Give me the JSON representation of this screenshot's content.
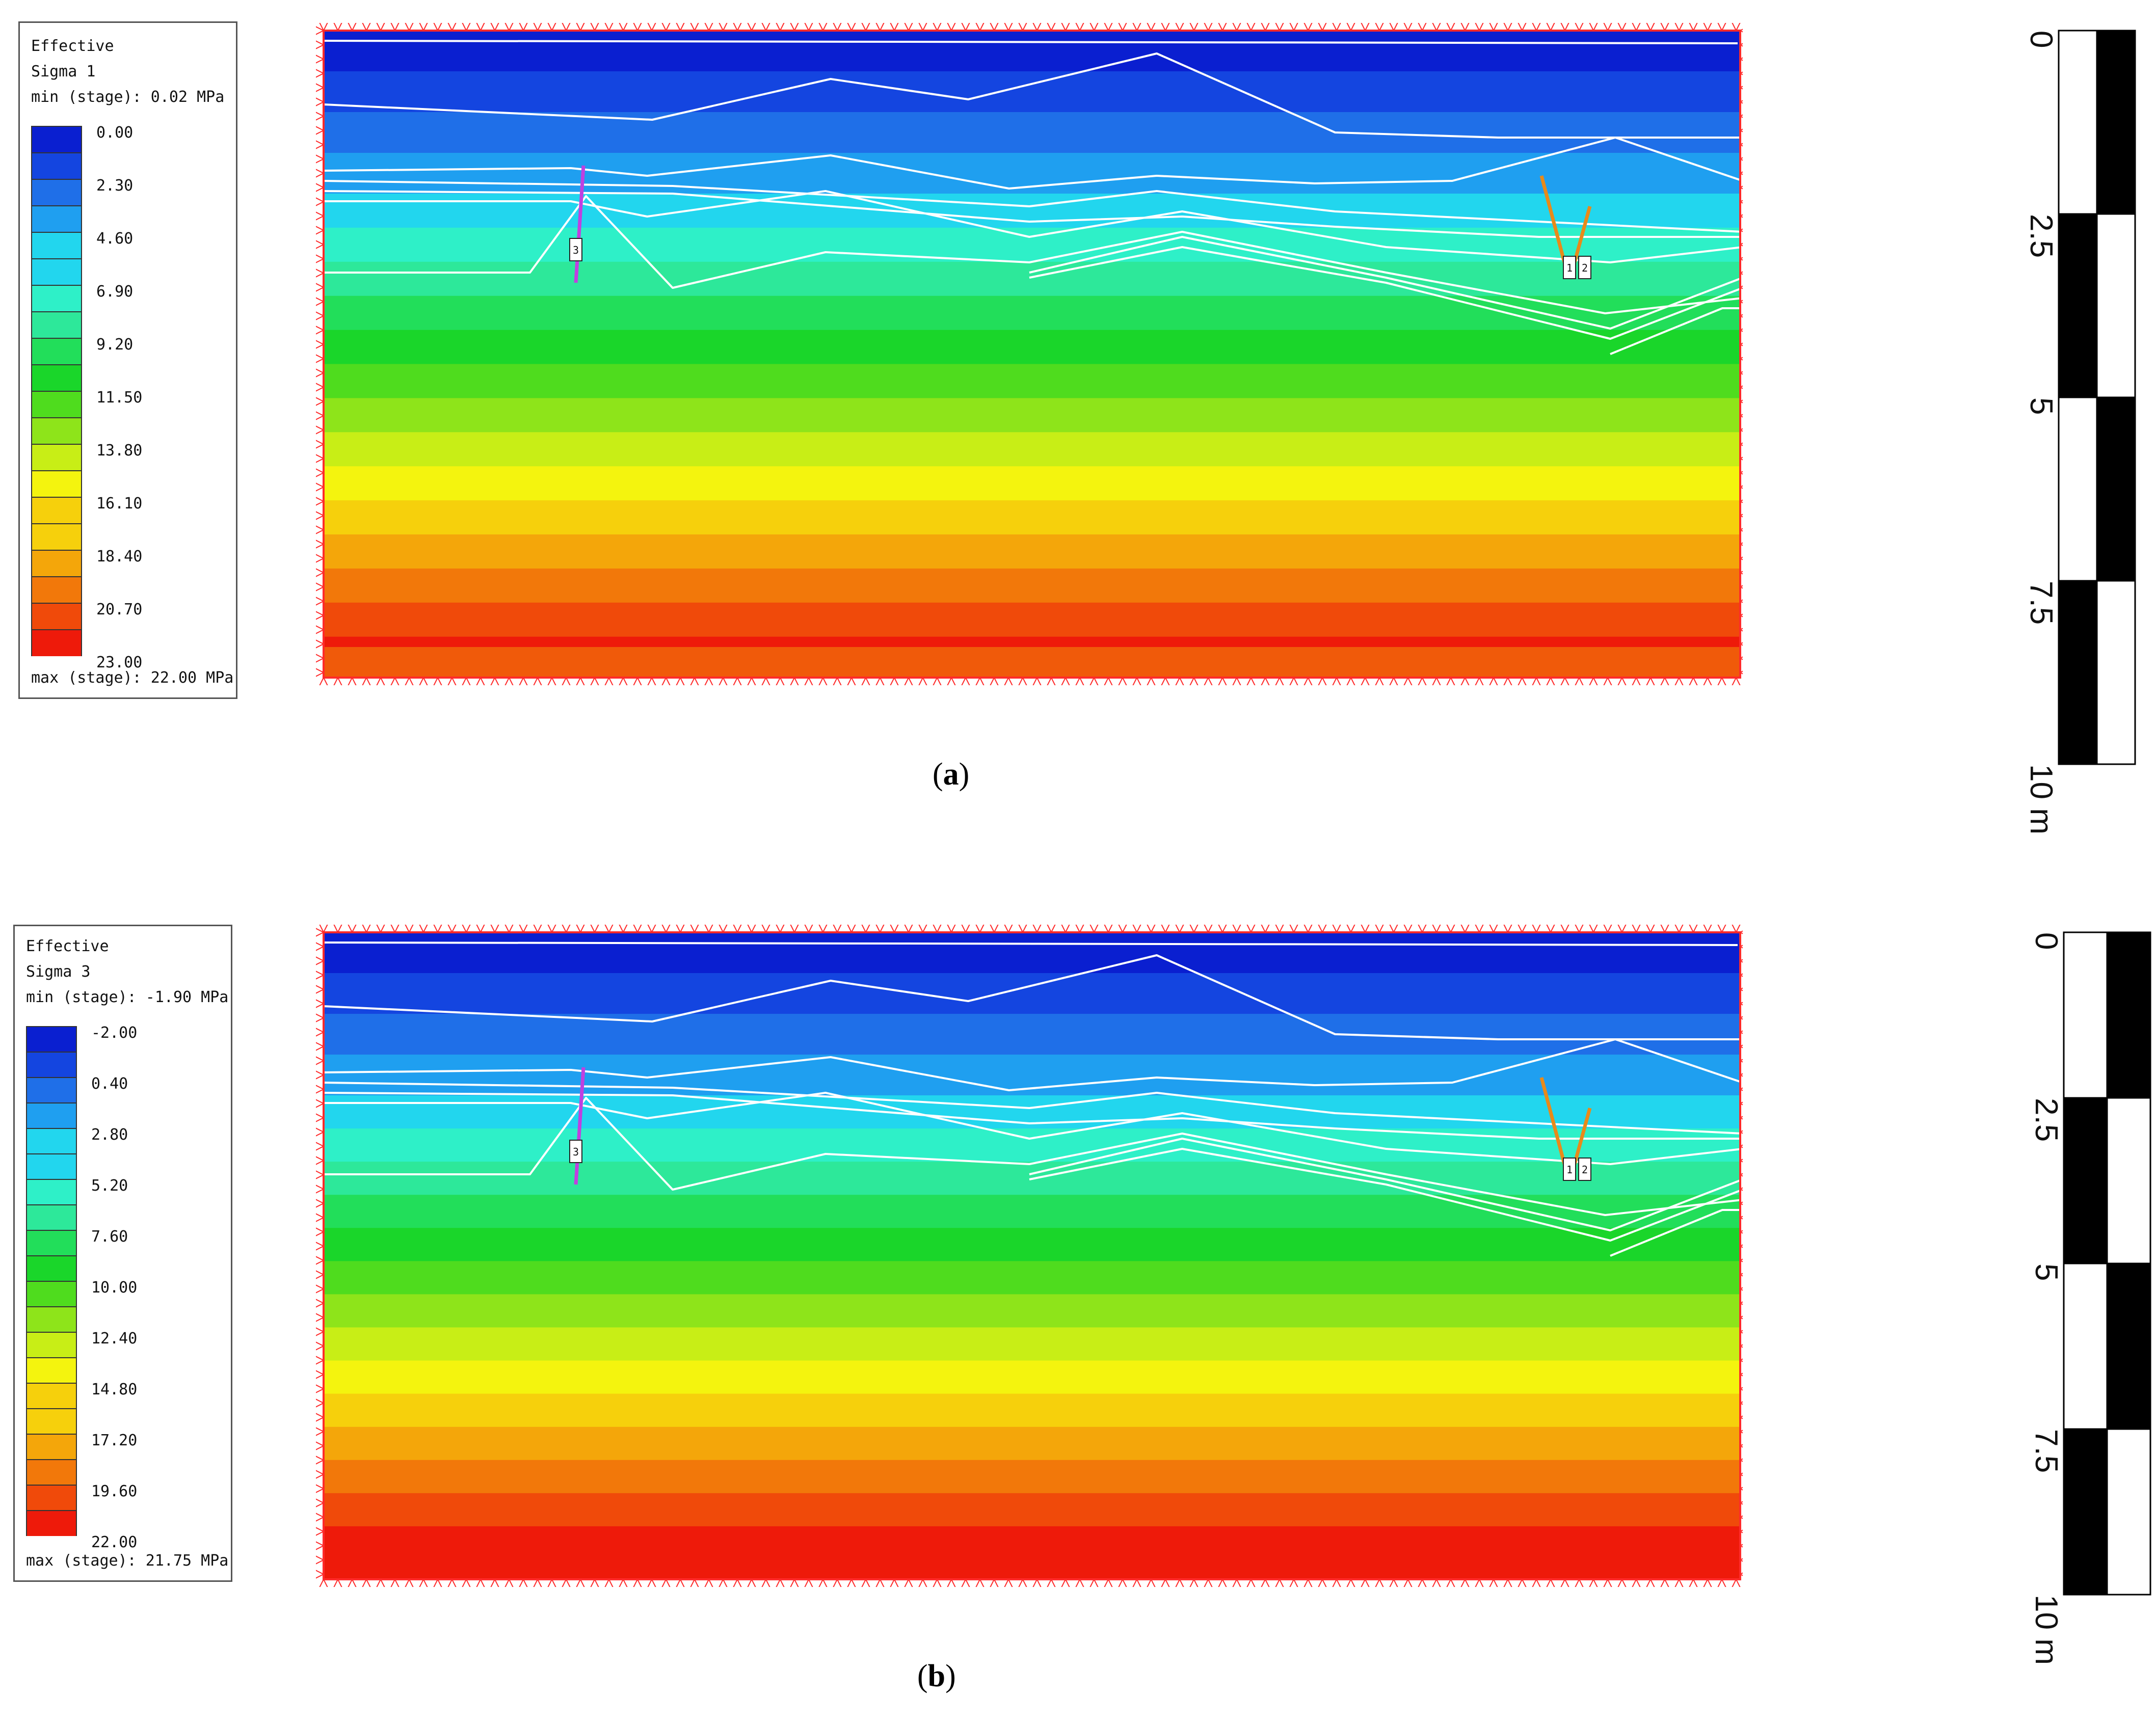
{
  "panels": [
    {
      "id": "a",
      "caption_letter": "a",
      "legend": {
        "title_lines": [
          "Effective",
          "Sigma 1",
          "min (stage): 0.02 MPa"
        ],
        "ticks": [
          "0.00",
          "2.30",
          "4.60",
          "6.90",
          "9.20",
          "11.50",
          "13.80",
          "16.10",
          "18.40",
          "20.70",
          "23.00"
        ],
        "footer": "max (stage): 22.00 MPa"
      },
      "marker_labels": [
        "3",
        "1",
        "2"
      ],
      "scale": {
        "labels": [
          "0",
          "2.5",
          "5",
          "7.5",
          "10 m"
        ]
      }
    },
    {
      "id": "b",
      "caption_letter": "b",
      "legend": {
        "title_lines": [
          "Effective",
          "Sigma 3",
          "min (stage): -1.90 MPa"
        ],
        "ticks": [
          "-2.00",
          "0.40",
          "2.80",
          "5.20",
          "7.60",
          "10.00",
          "12.40",
          "14.80",
          "17.20",
          "19.60",
          "22.00"
        ],
        "footer": "max (stage): 21.75 MPa"
      },
      "marker_labels": [
        "3",
        "1",
        "2"
      ],
      "scale": {
        "labels": [
          "0",
          "2.5",
          "5",
          "7.5",
          "10 m"
        ]
      }
    }
  ],
  "colors": {
    "contour_bands": [
      "#0a1fd0",
      "#1445e0",
      "#1f6fe8",
      "#1f9ff0",
      "#22d6ee",
      "#2ef0c8",
      "#2de89a",
      "#22de5a",
      "#1ad62a",
      "#4fdc1e",
      "#8ee41a",
      "#c8ee16",
      "#f4f40e",
      "#f6d00c",
      "#f4a60a",
      "#f2780a",
      "#f04a0a",
      "#ee1a0a"
    ],
    "boundary": "#ff2a2a",
    "joints": "#ffffff",
    "bolt_left": "#c040e0",
    "bolt_right": "#e88a1a"
  }
}
